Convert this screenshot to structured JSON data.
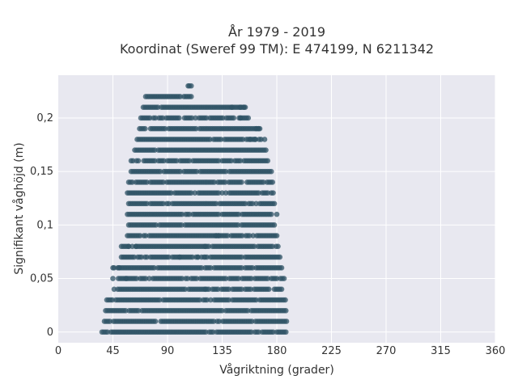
{
  "chart_data": {
    "type": "scatter",
    "title": "År 1979 - 2019",
    "subtitle": "Koordinat (Sweref 99 TM): E 474199, N 6211342",
    "xlabel": "Vågriktning (grader)",
    "ylabel": "Signifikant våghöjd (m)",
    "xlim": [
      0,
      360
    ],
    "ylim": [
      -0.01,
      0.24
    ],
    "x_ticks": [
      0,
      45,
      90,
      135,
      180,
      225,
      270,
      315,
      360
    ],
    "x_tick_labels": [
      "0",
      "45",
      "90",
      "135",
      "180",
      "225",
      "270",
      "315",
      "360"
    ],
    "y_ticks": [
      0,
      0.05,
      0.1,
      0.15,
      0.2
    ],
    "y_tick_labels": [
      "0",
      "0,05",
      "0,1",
      "0,15",
      "0,2"
    ],
    "grid": true,
    "legend": "none",
    "background_color": "#e8e8f0",
    "marker_color": "#2f5366",
    "series": [
      {
        "bands": [
          {
            "y": 0.0,
            "x_min": 36,
            "x_max": 188
          },
          {
            "y": 0.01,
            "x_min": 38,
            "x_max": 188
          },
          {
            "y": 0.02,
            "x_min": 39,
            "x_max": 188
          },
          {
            "y": 0.03,
            "x_min": 40,
            "x_max": 188
          },
          {
            "y": 0.04,
            "x_min": 43,
            "x_max": 187
          },
          {
            "y": 0.05,
            "x_min": 45,
            "x_max": 186
          },
          {
            "y": 0.06,
            "x_min": 46,
            "x_max": 185
          },
          {
            "y": 0.07,
            "x_min": 52,
            "x_max": 183
          },
          {
            "y": 0.08,
            "x_min": 52,
            "x_max": 182
          },
          {
            "y": 0.09,
            "x_min": 57,
            "x_max": 180
          },
          {
            "y": 0.1,
            "x_min": 58,
            "x_max": 180
          },
          {
            "y": 0.11,
            "x_min": 57,
            "x_max": 180
          },
          {
            "y": 0.12,
            "x_min": 58,
            "x_max": 178
          },
          {
            "y": 0.13,
            "x_min": 57,
            "x_max": 177
          },
          {
            "y": 0.14,
            "x_min": 58,
            "x_max": 177
          },
          {
            "y": 0.15,
            "x_min": 60,
            "x_max": 176
          },
          {
            "y": 0.16,
            "x_min": 60,
            "x_max": 173
          },
          {
            "y": 0.17,
            "x_min": 63,
            "x_max": 172
          },
          {
            "y": 0.18,
            "x_min": 65,
            "x_max": 170
          },
          {
            "y": 0.19,
            "x_min": 67,
            "x_max": 166
          },
          {
            "y": 0.2,
            "x_min": 68,
            "x_max": 157
          },
          {
            "y": 0.21,
            "x_min": 70,
            "x_max": 155
          },
          {
            "y": 0.22,
            "x_min": 72,
            "x_max": 110
          },
          {
            "y": 0.23,
            "x_min": 108,
            "x_max": 110
          }
        ],
        "points": [
          [
            107,
            0.23
          ],
          [
            143,
            0.21
          ],
          [
            150,
            0.21
          ],
          [
            153,
            0.21
          ],
          [
            150,
            0.2
          ],
          [
            155,
            0.2
          ],
          [
            163,
            0.19
          ],
          [
            165,
            0.19
          ],
          [
            158,
            0.18
          ],
          [
            162,
            0.18
          ],
          [
            58,
            0.08
          ],
          [
            64,
            0.08
          ],
          [
            120,
            0.07
          ],
          [
            121,
            0.08
          ],
          [
            130,
            0.09
          ],
          [
            132,
            0.09
          ],
          [
            115,
            0.07
          ],
          [
            100,
            0.07
          ],
          [
            45,
            0.06
          ],
          [
            56,
            0.05
          ],
          [
            50,
            0.06
          ],
          [
            121,
            0.04
          ]
        ]
      }
    ]
  }
}
